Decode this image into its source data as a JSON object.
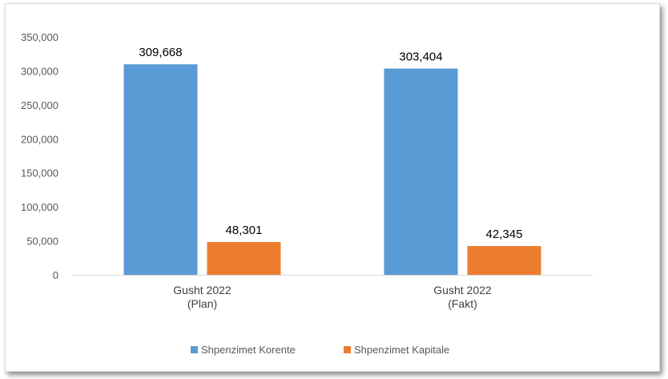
{
  "chart_data": {
    "type": "bar",
    "categories": [
      [
        "Gusht 2022",
        "(Plan)"
      ],
      [
        "Gusht 2022",
        "(Fakt)"
      ]
    ],
    "series": [
      {
        "name": "Shpenzimet Korente",
        "values": [
          309668,
          303404
        ],
        "labels": [
          "309,668",
          "303,404"
        ],
        "color": "#5B9BD5"
      },
      {
        "name": "Shpenzimet Kapitale",
        "values": [
          48301,
          42345
        ],
        "labels": [
          "48,301",
          "42,345"
        ],
        "color": "#ED7D31"
      }
    ],
    "ylim": [
      0,
      350000
    ],
    "yticks": [
      0,
      50000,
      100000,
      150000,
      200000,
      250000,
      300000,
      350000
    ],
    "ytick_labels": [
      "0",
      "50,000",
      "100,000",
      "150,000",
      "200,000",
      "250,000",
      "300,000",
      "350,000"
    ],
    "grid": false,
    "legend": "bottom"
  }
}
